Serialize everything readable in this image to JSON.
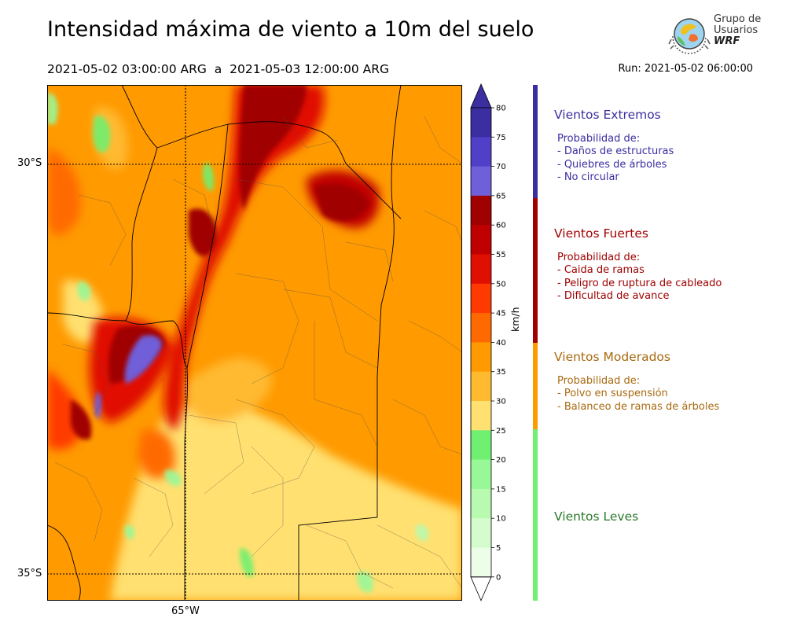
{
  "title": "Intensidad máxima de viento a 10m del suelo",
  "period": "2021-05-02 03:00:00 ARG  a  2021-05-03 12:00:00 ARG",
  "run": "Run: 2021-05-02 06:00:00",
  "logo": {
    "line1": "Grupo de",
    "line2": "Usuarios",
    "line3": "WRF"
  },
  "map": {
    "lat_labels": [
      "30°S",
      "35°S"
    ],
    "lon_labels": [
      "65°W"
    ]
  },
  "colorbar": {
    "label": "km/h",
    "ticks": [
      "80",
      "75",
      "70",
      "65",
      "60",
      "55",
      "50",
      "45",
      "40",
      "35",
      "30",
      "25",
      "20",
      "15",
      "10",
      "5",
      "0"
    ],
    "colors": [
      "#3a2ea0",
      "#5040c8",
      "#6f5fd8",
      "#a00000",
      "#c00000",
      "#e01000",
      "#ff3a00",
      "#ff6a00",
      "#ff9a00",
      "#ffba30",
      "#ffe070",
      "#70f070",
      "#98f898",
      "#b8fab0",
      "#d4fccc",
      "#ecfee8"
    ]
  },
  "categories": [
    {
      "name": "Vientos Extremos",
      "color": "#3a2ea0",
      "lines": [
        "Probabilidad de:",
        "- Daños de estructuras",
        "- Quiebres de árboles",
        "- No circular"
      ]
    },
    {
      "name": "Vientos Fuertes",
      "color": "#a00000",
      "lines": [
        "Probabilidad de:",
        "- Caida de ramas",
        "- Peligro de ruptura de cableado",
        "- Dificultad de avance"
      ]
    },
    {
      "name": "Vientos Moderados",
      "color": "#a86a10",
      "lines": [
        "Probabilidad de:",
        "- Polvo en suspensión",
        "- Balanceo de ramas de árboles"
      ]
    },
    {
      "name": "Vientos Leves",
      "color": "#2a7a2a",
      "lines": []
    }
  ],
  "category_bar_colors": [
    "#3a2ea0",
    "#a00000",
    "#ff9a00",
    "#70f070"
  ]
}
